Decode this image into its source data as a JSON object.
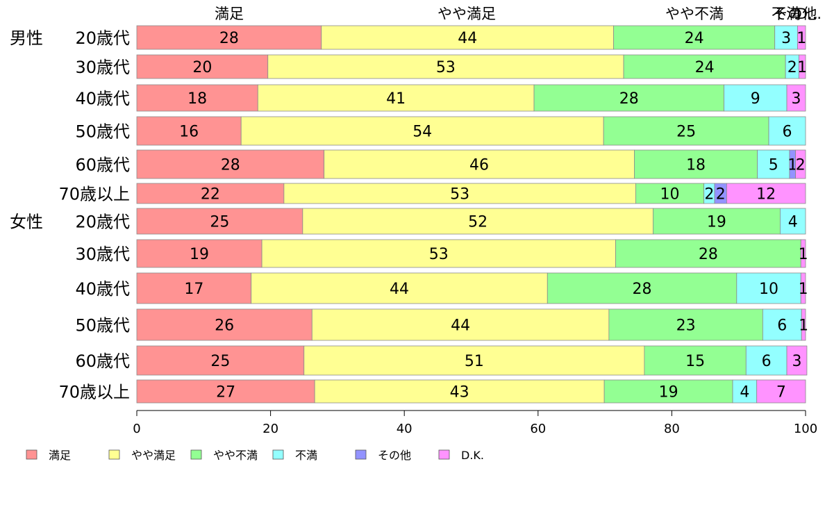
{
  "chart_data": {
    "type": "bar",
    "orientation": "horizontal",
    "stacked": true,
    "categories": [
      {
        "group": "男性",
        "label": "20歳代"
      },
      {
        "group": "",
        "label": "30歳代"
      },
      {
        "group": "",
        "label": "40歳代"
      },
      {
        "group": "",
        "label": "50歳代"
      },
      {
        "group": "",
        "label": "60歳代"
      },
      {
        "group": "",
        "label": "70歳以上"
      },
      {
        "group": "女性",
        "label": "20歳代"
      },
      {
        "group": "",
        "label": "30歳代"
      },
      {
        "group": "",
        "label": "40歳代"
      },
      {
        "group": "",
        "label": "50歳代"
      },
      {
        "group": "",
        "label": "60歳代"
      },
      {
        "group": "",
        "label": "70歳以上"
      }
    ],
    "series": [
      {
        "name": "満足",
        "color": "#ff9393",
        "values": [
          27.6,
          19.6,
          18.1,
          15.6,
          28.0,
          22.0,
          24.8,
          18.7,
          17.1,
          26.2,
          25.0,
          26.6
        ]
      },
      {
        "name": "やや満足",
        "color": "#ffff93",
        "values": [
          43.7,
          53.2,
          41.3,
          54.2,
          46.4,
          52.6,
          52.4,
          52.9,
          44.3,
          44.4,
          50.9,
          43.3
        ]
      },
      {
        "name": "やや不満",
        "color": "#93ff93",
        "values": [
          24.1,
          24.2,
          28.4,
          24.7,
          18.4,
          10.2,
          19.0,
          27.7,
          28.3,
          23.0,
          15.2,
          19.2
        ]
      },
      {
        "name": "不満",
        "color": "#93ffff",
        "values": [
          3.4,
          2.0,
          9.4,
          5.5,
          4.8,
          1.6,
          3.8,
          0.0,
          9.6,
          5.8,
          6.1,
          3.6
        ]
      },
      {
        "name": "その他",
        "color": "#9393ff",
        "values": [
          0.0,
          0.0,
          0.0,
          0.0,
          0.9,
          1.8,
          0.0,
          0.0,
          0.0,
          0.0,
          0.0,
          0.0
        ]
      },
      {
        "name": "D.K.",
        "color": "#ff93ff",
        "values": [
          1.2,
          1.0,
          2.8,
          0.0,
          1.5,
          11.8,
          0.0,
          0.7,
          0.7,
          0.6,
          3.0,
          7.3
        ]
      }
    ],
    "top_labels": [
      "満足",
      "やや満足",
      "やや不満",
      "不満",
      "その他",
      "D..."
    ],
    "xlim": [
      0,
      100
    ],
    "x_ticks": [
      0,
      20,
      40,
      60,
      80,
      100
    ],
    "title": "",
    "xlabel": "",
    "ylabel": "",
    "legend_position": "bottom-left",
    "grid": false
  }
}
